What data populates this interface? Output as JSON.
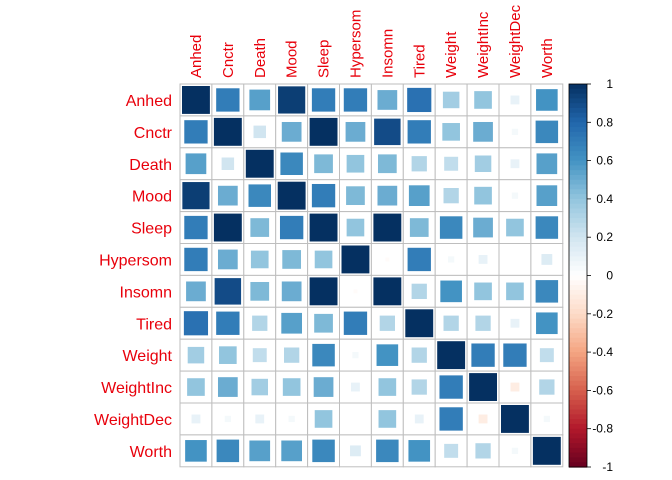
{
  "chart_data": {
    "type": "heatmap",
    "method": "square",
    "variables": [
      "Anhed",
      "Cnctr",
      "Death",
      "Mood",
      "Sleep",
      "Hypersom",
      "Insomn",
      "Tired",
      "Weight",
      "WeightInc",
      "WeightDec",
      "Worth"
    ],
    "matrix": [
      [
        1.0,
        0.7,
        0.55,
        0.95,
        0.7,
        0.7,
        0.5,
        0.75,
        0.35,
        0.4,
        0.1,
        0.6
      ],
      [
        0.7,
        1.0,
        0.2,
        0.5,
        1.0,
        0.5,
        0.9,
        0.7,
        0.4,
        0.5,
        0.05,
        0.65
      ],
      [
        0.55,
        0.2,
        1.0,
        0.65,
        0.45,
        0.4,
        0.45,
        0.3,
        0.25,
        0.35,
        0.1,
        0.55
      ],
      [
        0.95,
        0.5,
        0.65,
        1.0,
        0.7,
        0.45,
        0.5,
        0.55,
        0.3,
        0.4,
        0.05,
        0.55
      ],
      [
        0.7,
        1.0,
        0.45,
        0.7,
        1.0,
        0.4,
        1.0,
        0.45,
        0.65,
        0.5,
        0.4,
        0.65
      ],
      [
        0.7,
        0.5,
        0.4,
        0.45,
        0.4,
        1.0,
        -0.02,
        0.7,
        0.05,
        0.1,
        0.0,
        0.15
      ],
      [
        0.5,
        0.9,
        0.45,
        0.5,
        1.0,
        -0.02,
        1.0,
        0.3,
        0.6,
        0.4,
        0.4,
        0.65
      ],
      [
        0.75,
        0.7,
        0.3,
        0.55,
        0.45,
        0.7,
        0.3,
        1.0,
        0.3,
        0.3,
        0.1,
        0.6
      ],
      [
        0.35,
        0.4,
        0.25,
        0.3,
        0.65,
        0.05,
        0.6,
        0.3,
        1.0,
        0.7,
        0.7,
        0.25
      ],
      [
        0.4,
        0.5,
        0.35,
        0.4,
        0.5,
        0.1,
        0.4,
        0.3,
        0.7,
        1.0,
        -0.1,
        0.3
      ],
      [
        0.1,
        0.05,
        0.1,
        0.05,
        0.4,
        0.0,
        0.4,
        0.1,
        0.7,
        -0.1,
        1.0,
        0.05
      ],
      [
        0.6,
        0.65,
        0.55,
        0.55,
        0.65,
        0.15,
        0.65,
        0.6,
        0.25,
        0.3,
        0.05,
        1.0
      ]
    ],
    "color_scale": {
      "range": [
        -1,
        1
      ],
      "ticks": [
        "-1",
        "-0.8",
        "-0.6",
        "-0.4",
        "-0.2",
        "0",
        "0.2",
        "0.4",
        "0.6",
        "0.8",
        "1"
      ],
      "colors": [
        "#67001F",
        "#B2182B",
        "#D6604D",
        "#F4A582",
        "#FDDBC7",
        "#FFFFFF",
        "#D1E5F0",
        "#92C5DE",
        "#4393C3",
        "#2166AC",
        "#053061"
      ]
    },
    "label_color": "#E8000B",
    "grid_color": "#BEBEBE"
  }
}
